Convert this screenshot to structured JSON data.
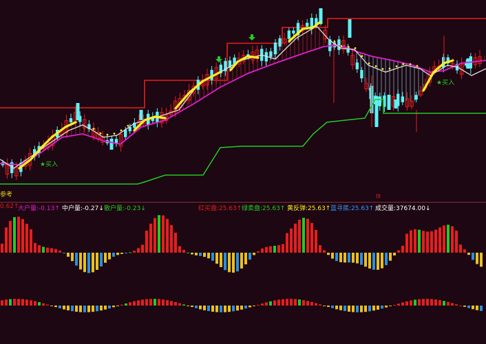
{
  "chart_data": [
    {
      "type": "candlestick",
      "panel": "main",
      "annotations": {
        "buy_labels": [
          "★买入",
          "★买入"
        ],
        "hold_label": "持",
        "ref_label": "参考"
      },
      "levels": {
        "upper_red_line_segments": [
          {
            "from": 0,
            "to": 100,
            "y_price": 157
          },
          {
            "from": 100,
            "to": 210,
            "y_price": 157
          },
          {
            "from": 210,
            "to": 330,
            "y_price": 117
          },
          {
            "from": 330,
            "to": 410,
            "y_price": 63
          },
          {
            "from": 410,
            "to": 476,
            "y_price": 40
          },
          {
            "from": 476,
            "to": 706,
            "y_price": 27
          }
        ]
      },
      "colors": {
        "up": "#e81e1e",
        "down": "#5ff0f5",
        "trend_yellow": "#ffee22",
        "ma_magenta": "#e020d0",
        "ma_white": "#e0e0e0",
        "support_green": "#22cc22",
        "resistance_red": "#e81e1e"
      }
    },
    {
      "type": "bar",
      "panel": "indicator",
      "legend": [
        {
          "text": "0.62↑",
          "color": "#e81e1e"
        },
        {
          "text": "大户量:-0.13↑",
          "color": "#e020d0"
        },
        {
          "text": "中户量:-0.27↓",
          "color": "#ffffff"
        },
        {
          "text": "散户量:-0.23↓",
          "color": "#22cc22"
        },
        {
          "text": "红买盘:25.63↑",
          "color": "#e81e1e"
        },
        {
          "text": "绿卖盘:25.63↑",
          "color": "#22cc22"
        },
        {
          "text": "黄反弹:25.63↑",
          "color": "#ffee22"
        },
        {
          "text": "蓝寻底:25.63↑",
          "color": "#3399ff"
        },
        {
          "text": "成交量:37674.00↓",
          "color": "#ffffff"
        }
      ],
      "colors": {
        "red": "#e81e1e",
        "green": "#22cc22",
        "yellow": "#e8c020",
        "blue": "#2a8fe0"
      }
    }
  ]
}
